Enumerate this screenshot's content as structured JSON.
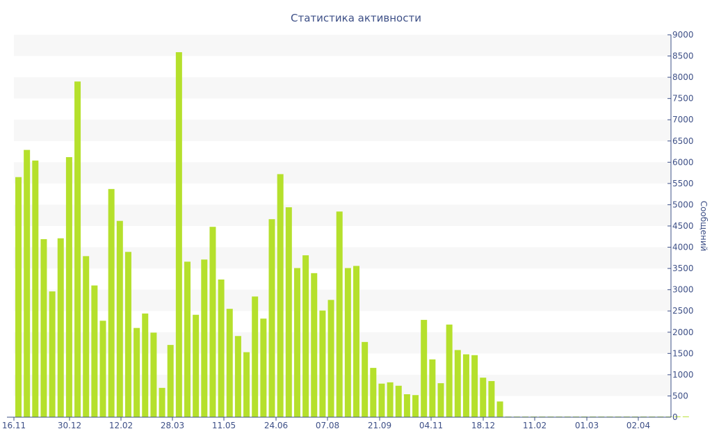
{
  "chart_data": {
    "type": "bar",
    "title": "Статистика активности",
    "xlabel": "",
    "ylabel": "Сообщений",
    "ylim": [
      0,
      9000
    ],
    "y_ticks": [
      0,
      500,
      1000,
      1500,
      2000,
      2500,
      3000,
      3500,
      4000,
      4500,
      5000,
      5500,
      6000,
      6500,
      7000,
      7500,
      8000,
      8500,
      9000
    ],
    "x_tick_labels": [
      "16.11",
      "30.12",
      "12.02",
      "28.03",
      "11.05",
      "24.06",
      "07.08",
      "21.09",
      "04.11",
      "18.12",
      "11.02",
      "01.03",
      "02.04"
    ],
    "y_axis_position": "right",
    "grid": "alternating horizontal bands",
    "colors": {
      "bar": "#b5e02c",
      "text": "#3e5087",
      "band": "#f7f7f7",
      "axis": "#3e5087"
    },
    "values": [
      5650,
      6290,
      6040,
      4190,
      2960,
      4210,
      6120,
      7900,
      3790,
      3100,
      2270,
      5370,
      4620,
      3890,
      2100,
      2440,
      1990,
      690,
      1700,
      8590,
      3660,
      2410,
      3710,
      4480,
      3240,
      2550,
      1910,
      1530,
      2840,
      2320,
      4660,
      5720,
      4940,
      3510,
      3810,
      3390,
      2510,
      2760,
      4840,
      3510,
      3560,
      1770,
      1160,
      790,
      820,
      740,
      540,
      520,
      2290,
      1360,
      800,
      2180,
      1580,
      1480,
      1460,
      930,
      850,
      370,
      15,
      15,
      15,
      15,
      15,
      15,
      15,
      15,
      15,
      15,
      15,
      15,
      15,
      15,
      15,
      15,
      15,
      15,
      15,
      15,
      15,
      15
    ]
  }
}
